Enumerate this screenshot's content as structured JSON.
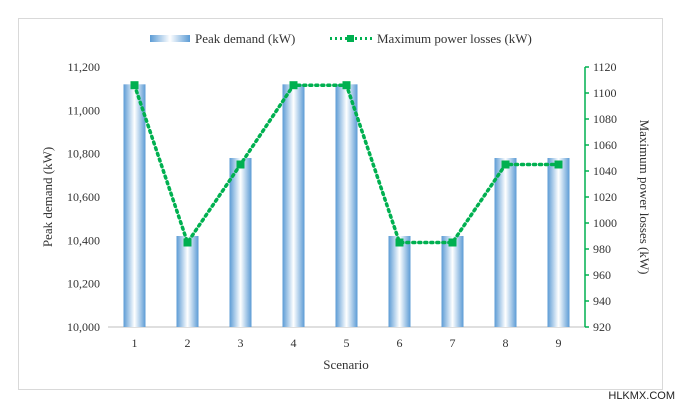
{
  "chart_data": {
    "type": "bar",
    "categories": [
      "1",
      "2",
      "3",
      "4",
      "5",
      "6",
      "7",
      "8",
      "9"
    ],
    "xlabel": "Scenario",
    "series": [
      {
        "name": "Peak demand  (kW)",
        "axis": "left",
        "type": "bar",
        "color": "#5b9bd5",
        "values": [
          11120,
          10420,
          10780,
          11120,
          11120,
          10420,
          10420,
          10780,
          10780
        ]
      },
      {
        "name": "Maximum power losses (kW)",
        "axis": "right",
        "type": "line",
        "style": "dotted",
        "marker": "square",
        "color": "#00b050",
        "values": [
          1106,
          985,
          1045,
          1106,
          1106,
          985,
          985,
          1045,
          1045
        ]
      }
    ],
    "y_left": {
      "label": "Peak demand (kW)",
      "ylim": [
        10000,
        11200
      ],
      "ticks": [
        "10,000",
        "10,200",
        "10,400",
        "10,600",
        "10,800",
        "11,000",
        "11,200"
      ],
      "tick_values": [
        10000,
        10200,
        10400,
        10600,
        10800,
        11000,
        11200
      ]
    },
    "y_right": {
      "label": "Maximum power losses (kW)",
      "ylim": [
        920,
        1120
      ],
      "ticks": [
        "920",
        "940",
        "960",
        "980",
        "1000",
        "1020",
        "1040",
        "1060",
        "1080",
        "1100",
        "1120"
      ],
      "tick_values": [
        920,
        940,
        960,
        980,
        1000,
        1020,
        1040,
        1060,
        1080,
        1100,
        1120
      ]
    },
    "legend_position": "top-center",
    "grid": false
  },
  "watermark": "HLKMX.COM"
}
